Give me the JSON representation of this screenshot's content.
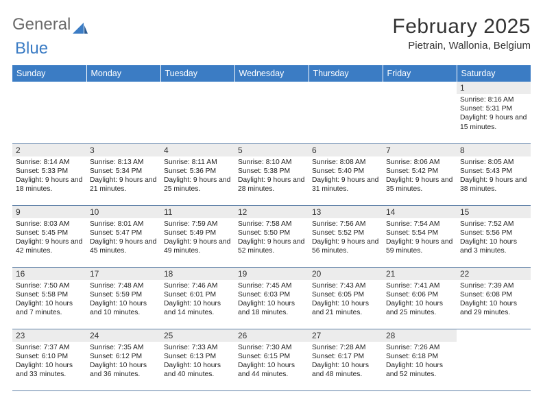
{
  "logo": {
    "text1": "General",
    "text2": "Blue"
  },
  "title": "February 2025",
  "location": "Pietrain, Wallonia, Belgium",
  "colors": {
    "header_bg": "#3b7cc4",
    "header_text": "#ffffff",
    "daynum_bg": "#ececec",
    "row_border": "#5d7fa6",
    "body_text": "#333333",
    "logo_gray": "#6a6a6a",
    "logo_blue": "#3b7cc4"
  },
  "fonts": {
    "title_size": 30,
    "location_size": 15,
    "day_header_size": 12.5,
    "daynum_size": 12,
    "daytext_size": 10.3
  },
  "day_headers": [
    "Sunday",
    "Monday",
    "Tuesday",
    "Wednesday",
    "Thursday",
    "Friday",
    "Saturday"
  ],
  "weeks": [
    [
      null,
      null,
      null,
      null,
      null,
      null,
      {
        "n": "1",
        "sr": "8:16 AM",
        "ss": "5:31 PM",
        "dl": "9 hours and 15 minutes."
      }
    ],
    [
      {
        "n": "2",
        "sr": "8:14 AM",
        "ss": "5:33 PM",
        "dl": "9 hours and 18 minutes."
      },
      {
        "n": "3",
        "sr": "8:13 AM",
        "ss": "5:34 PM",
        "dl": "9 hours and 21 minutes."
      },
      {
        "n": "4",
        "sr": "8:11 AM",
        "ss": "5:36 PM",
        "dl": "9 hours and 25 minutes."
      },
      {
        "n": "5",
        "sr": "8:10 AM",
        "ss": "5:38 PM",
        "dl": "9 hours and 28 minutes."
      },
      {
        "n": "6",
        "sr": "8:08 AM",
        "ss": "5:40 PM",
        "dl": "9 hours and 31 minutes."
      },
      {
        "n": "7",
        "sr": "8:06 AM",
        "ss": "5:42 PM",
        "dl": "9 hours and 35 minutes."
      },
      {
        "n": "8",
        "sr": "8:05 AM",
        "ss": "5:43 PM",
        "dl": "9 hours and 38 minutes."
      }
    ],
    [
      {
        "n": "9",
        "sr": "8:03 AM",
        "ss": "5:45 PM",
        "dl": "9 hours and 42 minutes."
      },
      {
        "n": "10",
        "sr": "8:01 AM",
        "ss": "5:47 PM",
        "dl": "9 hours and 45 minutes."
      },
      {
        "n": "11",
        "sr": "7:59 AM",
        "ss": "5:49 PM",
        "dl": "9 hours and 49 minutes."
      },
      {
        "n": "12",
        "sr": "7:58 AM",
        "ss": "5:50 PM",
        "dl": "9 hours and 52 minutes."
      },
      {
        "n": "13",
        "sr": "7:56 AM",
        "ss": "5:52 PM",
        "dl": "9 hours and 56 minutes."
      },
      {
        "n": "14",
        "sr": "7:54 AM",
        "ss": "5:54 PM",
        "dl": "9 hours and 59 minutes."
      },
      {
        "n": "15",
        "sr": "7:52 AM",
        "ss": "5:56 PM",
        "dl": "10 hours and 3 minutes."
      }
    ],
    [
      {
        "n": "16",
        "sr": "7:50 AM",
        "ss": "5:58 PM",
        "dl": "10 hours and 7 minutes."
      },
      {
        "n": "17",
        "sr": "7:48 AM",
        "ss": "5:59 PM",
        "dl": "10 hours and 10 minutes."
      },
      {
        "n": "18",
        "sr": "7:46 AM",
        "ss": "6:01 PM",
        "dl": "10 hours and 14 minutes."
      },
      {
        "n": "19",
        "sr": "7:45 AM",
        "ss": "6:03 PM",
        "dl": "10 hours and 18 minutes."
      },
      {
        "n": "20",
        "sr": "7:43 AM",
        "ss": "6:05 PM",
        "dl": "10 hours and 21 minutes."
      },
      {
        "n": "21",
        "sr": "7:41 AM",
        "ss": "6:06 PM",
        "dl": "10 hours and 25 minutes."
      },
      {
        "n": "22",
        "sr": "7:39 AM",
        "ss": "6:08 PM",
        "dl": "10 hours and 29 minutes."
      }
    ],
    [
      {
        "n": "23",
        "sr": "7:37 AM",
        "ss": "6:10 PM",
        "dl": "10 hours and 33 minutes."
      },
      {
        "n": "24",
        "sr": "7:35 AM",
        "ss": "6:12 PM",
        "dl": "10 hours and 36 minutes."
      },
      {
        "n": "25",
        "sr": "7:33 AM",
        "ss": "6:13 PM",
        "dl": "10 hours and 40 minutes."
      },
      {
        "n": "26",
        "sr": "7:30 AM",
        "ss": "6:15 PM",
        "dl": "10 hours and 44 minutes."
      },
      {
        "n": "27",
        "sr": "7:28 AM",
        "ss": "6:17 PM",
        "dl": "10 hours and 48 minutes."
      },
      {
        "n": "28",
        "sr": "7:26 AM",
        "ss": "6:18 PM",
        "dl": "10 hours and 52 minutes."
      },
      null
    ]
  ],
  "labels": {
    "sunrise": "Sunrise: ",
    "sunset": "Sunset: ",
    "daylight": "Daylight: "
  }
}
